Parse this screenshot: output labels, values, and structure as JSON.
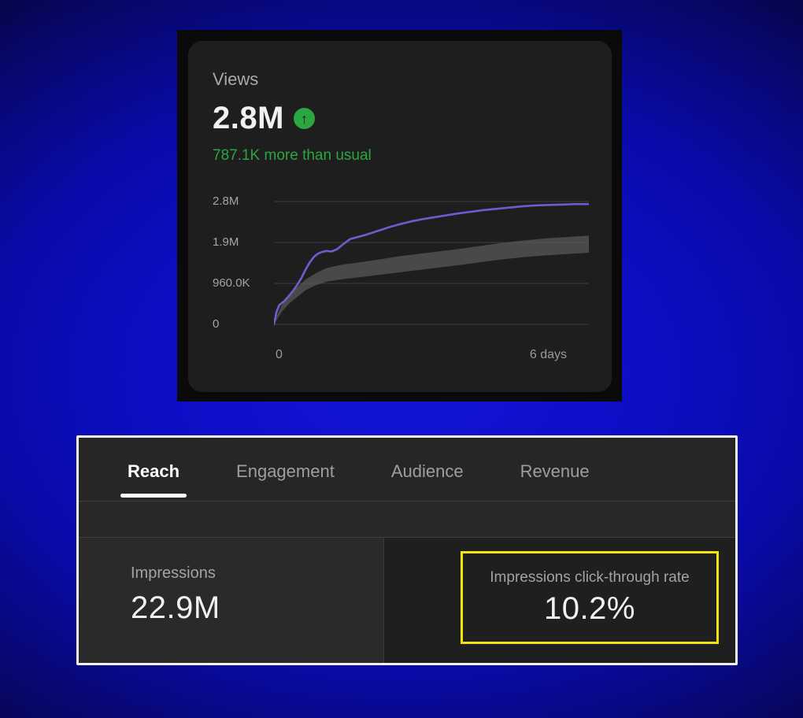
{
  "views_card": {
    "title": "Views",
    "value": "2.8M",
    "subtitle": "787.1K more than usual",
    "trend_icon": "up-arrow-in-green-circle",
    "accent_green": "#2ba640",
    "line_color": "#6a5fd1",
    "chart_data": {
      "type": "line",
      "title": "Views over last 7 days vs typical range",
      "x_ticks": [
        "0",
        "6 days"
      ],
      "x_range_days": [
        0,
        6
      ],
      "y_tick_labels": [
        "0",
        "960.0K",
        "1.9M",
        "2.8M"
      ],
      "y_tick_values_m": [
        0,
        0.96,
        1.92,
        2.88
      ],
      "grid": true,
      "legend": false,
      "views_line": {
        "name": "views",
        "x": [
          0,
          0.05,
          0.1,
          0.15,
          0.2,
          0.28,
          0.36,
          0.44,
          0.52,
          0.6,
          0.68,
          0.76,
          0.84,
          0.92,
          1.0,
          1.1,
          1.2,
          1.32,
          1.45,
          1.6,
          1.75,
          1.9,
          2.05,
          2.2,
          2.4,
          2.6,
          2.8,
          3.0,
          3.25,
          3.5,
          3.75,
          4.0,
          4.25,
          4.5,
          4.75,
          5.0,
          5.25,
          5.5,
          5.75,
          6.0
        ],
        "y_m": [
          0,
          0.3,
          0.45,
          0.5,
          0.55,
          0.66,
          0.78,
          0.92,
          1.08,
          1.28,
          1.45,
          1.58,
          1.66,
          1.7,
          1.72,
          1.71,
          1.76,
          1.88,
          2.0,
          2.05,
          2.1,
          2.16,
          2.22,
          2.28,
          2.35,
          2.41,
          2.46,
          2.5,
          2.55,
          2.6,
          2.64,
          2.68,
          2.71,
          2.74,
          2.77,
          2.79,
          2.8,
          2.81,
          2.82,
          2.82
        ]
      },
      "typical_range": {
        "name": "typical-range-band",
        "x": [
          0,
          0.15,
          0.3,
          0.45,
          0.6,
          0.8,
          1.0,
          1.3,
          1.6,
          2.0,
          2.4,
          2.8,
          3.2,
          3.6,
          4.0,
          4.4,
          4.8,
          5.2,
          5.6,
          6.0
        ],
        "upper_m": [
          0.05,
          0.45,
          0.7,
          0.88,
          1.05,
          1.2,
          1.32,
          1.4,
          1.45,
          1.52,
          1.6,
          1.66,
          1.72,
          1.78,
          1.85,
          1.92,
          1.97,
          2.02,
          2.05,
          2.08
        ],
        "lower_m": [
          0.0,
          0.3,
          0.5,
          0.65,
          0.8,
          0.92,
          1.0,
          1.06,
          1.1,
          1.16,
          1.22,
          1.28,
          1.34,
          1.4,
          1.47,
          1.53,
          1.58,
          1.62,
          1.65,
          1.68
        ]
      },
      "band_color": "#5a5a5a",
      "gridline_color": "#3f3f3f"
    }
  },
  "analytics_panel": {
    "tabs": [
      {
        "label": "Reach",
        "active": true
      },
      {
        "label": "Engagement",
        "active": false
      },
      {
        "label": "Audience",
        "active": false
      },
      {
        "label": "Revenue",
        "active": false
      }
    ],
    "metrics": [
      {
        "label": "Impressions",
        "value": "22.9M",
        "highlighted": false
      },
      {
        "label": "Impressions click-through rate",
        "value": "10.2%",
        "highlighted": true
      }
    ],
    "highlight_color": "#f2e40c"
  }
}
